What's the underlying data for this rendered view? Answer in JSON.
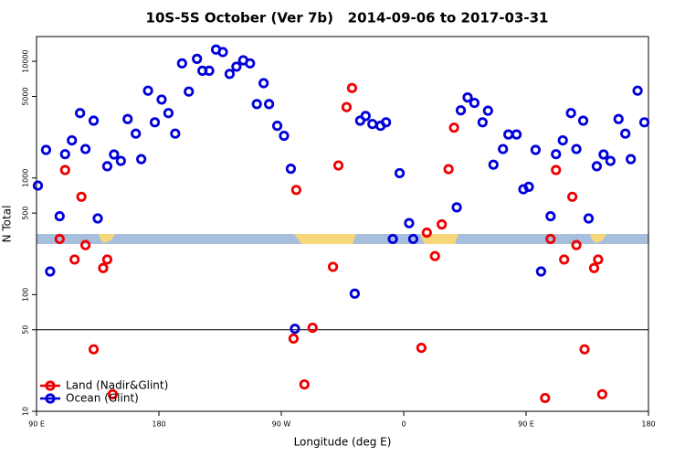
{
  "chart_data": {
    "type": "scatter",
    "title": "10S-5S October (Ver 7b)   2014-09-06 to 2017-03-31",
    "x_label": "Longitude (deg E)",
    "y_label": "N Total",
    "log_y": true,
    "legend": "bottom-left",
    "xlim": [
      90,
      540
    ],
    "xticks": [
      {
        "value": 90,
        "label": "90 E"
      },
      {
        "value": 180,
        "label": "180"
      },
      {
        "value": 270,
        "label": "90 W"
      },
      {
        "value": 360,
        "label": "0"
      },
      {
        "value": 450,
        "label": "90 E"
      },
      {
        "value": 540,
        "label": "180"
      }
    ],
    "ylim": [
      10,
      16300
    ],
    "yticks": [
      10,
      50,
      100,
      500,
      1000,
      5000,
      10000
    ],
    "hline": 50,
    "series": [
      {
        "name": "Land (Nadir&Glint)",
        "color": "#ee0000",
        "x": [
          107,
          111,
          118,
          123,
          126,
          132,
          139,
          142,
          146,
          279,
          281,
          287,
          293,
          308,
          312,
          318,
          322,
          373,
          377,
          383,
          388,
          393,
          397,
          464,
          468,
          472,
          478,
          484,
          487,
          493,
          500,
          503,
          506
        ],
        "values": [
          300,
          1170,
          200,
          690,
          266,
          34,
          169,
          200,
          14,
          42,
          790,
          17,
          52,
          173,
          1280,
          4050,
          5900,
          35,
          340,
          214,
          400,
          1190,
          2700,
          13,
          300,
          1170,
          200,
          690,
          266,
          34,
          169,
          200,
          14
        ]
      },
      {
        "name": "Ocean (Glint)",
        "color": "#0000dd",
        "x": [
          91,
          97,
          100,
          107,
          111,
          116,
          122,
          126,
          132,
          135,
          142,
          147,
          152,
          157,
          163,
          167,
          172,
          177,
          182,
          187,
          192,
          197,
          202,
          208,
          212,
          217,
          222,
          227,
          232,
          237,
          242,
          247,
          252,
          257,
          261,
          267,
          272,
          277,
          280,
          324,
          328,
          332,
          337,
          343,
          347,
          352,
          357,
          364,
          367,
          399,
          402,
          407,
          412,
          418,
          422,
          426,
          433,
          437,
          443,
          448,
          452,
          457,
          461,
          468,
          472,
          477,
          483,
          487,
          492,
          496,
          502,
          507,
          512,
          518,
          523,
          527,
          532,
          537
        ],
        "values": [
          860,
          1740,
          158,
          470,
          1600,
          2100,
          3600,
          1770,
          3100,
          450,
          1260,
          1590,
          1400,
          3200,
          2400,
          1450,
          5600,
          3000,
          4700,
          3600,
          2400,
          9600,
          5500,
          10500,
          8300,
          8300,
          12600,
          12000,
          7800,
          9000,
          10200,
          9600,
          4300,
          6500,
          4300,
          2800,
          2300,
          1200,
          51,
          102,
          3100,
          3400,
          2900,
          2800,
          3000,
          300,
          1100,
          410,
          300,
          560,
          3800,
          4900,
          4400,
          3000,
          3770,
          1300,
          1770,
          2360,
          2360,
          800,
          840,
          1740,
          158,
          470,
          1600,
          2100,
          3600,
          1770,
          3100,
          450,
          1260,
          1590,
          1400,
          3200,
          2400,
          1450,
          5600,
          3000
        ]
      }
    ]
  }
}
